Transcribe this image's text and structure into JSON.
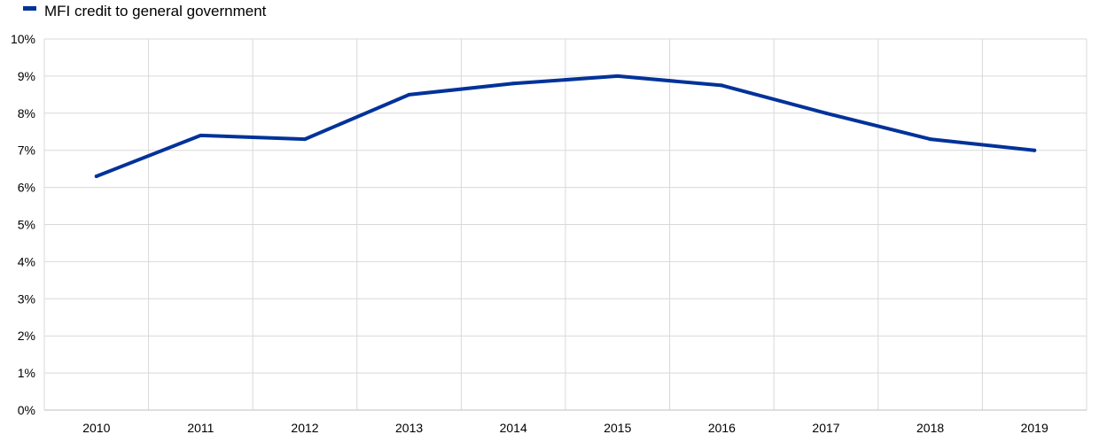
{
  "chart_data": {
    "type": "line",
    "title": "",
    "xlabel": "",
    "ylabel": "",
    "categories": [
      "2010",
      "2011",
      "2012",
      "2013",
      "2014",
      "2015",
      "2016",
      "2017",
      "2018",
      "2019"
    ],
    "series": [
      {
        "name": "MFI credit to general government",
        "values": [
          6.3,
          7.4,
          7.3,
          8.5,
          8.8,
          9.0,
          8.75,
          8.0,
          7.3,
          7.0
        ],
        "color": "#003299"
      }
    ],
    "ylim": [
      0,
      10
    ],
    "y_ticks": [
      0,
      1,
      2,
      3,
      4,
      5,
      6,
      7,
      8,
      9,
      10
    ],
    "y_tick_labels": [
      "0%",
      "1%",
      "2%",
      "3%",
      "4%",
      "5%",
      "6%",
      "7%",
      "8%",
      "9%",
      "10%"
    ],
    "grid": true,
    "legend_position": "top-left",
    "colors": {
      "grid": "#d9d9d9",
      "axis": "#bfbfbf",
      "text": "#000000"
    }
  }
}
